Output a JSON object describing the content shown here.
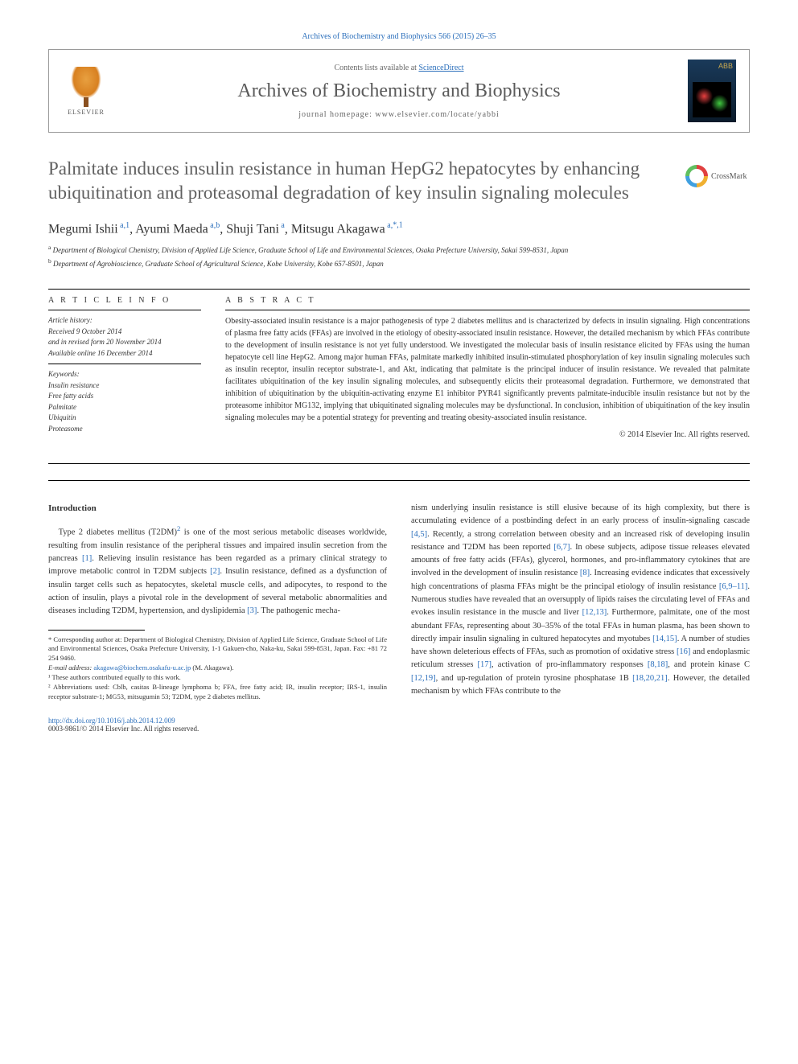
{
  "citation": "Archives of Biochemistry and Biophysics 566 (2015) 26–35",
  "header": {
    "contents_prefix": "Contents lists available at ",
    "contents_link": "ScienceDirect",
    "journal": "Archives of Biochemistry and Biophysics",
    "homepage_prefix": "journal homepage: ",
    "homepage_url": "www.elsevier.com/locate/yabbi",
    "elsevier": "ELSEVIER",
    "cover_label": "ABB"
  },
  "title": "Palmitate induces insulin resistance in human HepG2 hepatocytes by enhancing ubiquitination and proteasomal degradation of key insulin signaling molecules",
  "crossmark": "CrossMark",
  "authors_html": "Megumi Ishii <sup>a,1</sup>, Ayumi Maeda <sup>a,b</sup>, Shuji Tani <sup>a</sup>, Mitsugu Akagawa <sup>a,</sup>",
  "author_corr_sup": "*,1",
  "affiliations": {
    "a": "Department of Biological Chemistry, Division of Applied Life Science, Graduate School of Life and Environmental Sciences, Osaka Prefecture University, Sakai 599-8531, Japan",
    "b": "Department of Agrobioscience, Graduate School of Agricultural Science, Kobe University, Kobe 657-8501, Japan"
  },
  "info": {
    "heading": "A R T I C L E   I N F O",
    "history_label": "Article history:",
    "received": "Received 9 October 2014",
    "revised": "and in revised form 20 November 2014",
    "online": "Available online 16 December 2014",
    "keywords_label": "Keywords:",
    "keywords": [
      "Insulin resistance",
      "Free fatty acids",
      "Palmitate",
      "Ubiquitin",
      "Proteasome"
    ]
  },
  "abstract": {
    "heading": "A B S T R A C T",
    "text": "Obesity-associated insulin resistance is a major pathogenesis of type 2 diabetes mellitus and is characterized by defects in insulin signaling. High concentrations of plasma free fatty acids (FFAs) are involved in the etiology of obesity-associated insulin resistance. However, the detailed mechanism by which FFAs contribute to the development of insulin resistance is not yet fully understood. We investigated the molecular basis of insulin resistance elicited by FFAs using the human hepatocyte cell line HepG2. Among major human FFAs, palmitate markedly inhibited insulin-stimulated phosphorylation of key insulin signaling molecules such as insulin receptor, insulin receptor substrate-1, and Akt, indicating that palmitate is the principal inducer of insulin resistance. We revealed that palmitate facilitates ubiquitination of the key insulin signaling molecules, and subsequently elicits their proteasomal degradation. Furthermore, we demonstrated that inhibition of ubiquitination by the ubiquitin-activating enzyme E1 inhibitor PYR41 significantly prevents palmitate-inducible insulin resistance but not by the proteasome inhibitor MG132, implying that ubiquitinated signaling molecules may be dysfunctional. In conclusion, inhibition of ubiquitination of the key insulin signaling molecules may be a potential strategy for preventing and treating obesity-associated insulin resistance.",
    "copyright": "© 2014 Elsevier Inc. All rights reserved."
  },
  "intro": {
    "heading": "Introduction",
    "para_left": "Type 2 diabetes mellitus (T2DM)² is one of the most serious metabolic diseases worldwide, resulting from insulin resistance of the peripheral tissues and impaired insulin secretion from the pancreas [1]. Relieving insulin resistance has been regarded as a primary clinical strategy to improve metabolic control in T2DM subjects [2]. Insulin resistance, defined as a dysfunction of insulin target cells such as hepatocytes, skeletal muscle cells, and adipocytes, to respond to the action of insulin, plays a pivotal role in the development of several metabolic abnormalities and diseases including T2DM, hypertension, and dyslipidemia [3]. The pathogenic mecha-",
    "para_right": "nism underlying insulin resistance is still elusive because of its high complexity, but there is accumulating evidence of a postbinding defect in an early process of insulin-signaling cascade [4,5]. Recently, a strong correlation between obesity and an increased risk of developing insulin resistance and T2DM has been reported [6,7]. In obese subjects, adipose tissue releases elevated amounts of free fatty acids (FFAs), glycerol, hormones, and pro-inflammatory cytokines that are involved in the development of insulin resistance [8]. Increasing evidence indicates that excessively high concentrations of plasma FFAs might be the principal etiology of insulin resistance [6,9–11]. Numerous studies have revealed that an oversupply of lipids raises the circulating level of FFAs and evokes insulin resistance in the muscle and liver [12,13]. Furthermore, palmitate, one of the most abundant FFAs, representing about 30–35% of the total FFAs in human plasma, has been shown to directly impair insulin signaling in cultured hepatocytes and myotubes [14,15]. A number of studies have shown deleterious effects of FFAs, such as promotion of oxidative stress [16] and endoplasmic reticulum stresses [17], activation of pro-inflammatory responses [8,18], and protein kinase C [12,19], and up-regulation of protein tyrosine phosphatase 1B [18,20,21]. However, the detailed mechanism by which FFAs contribute to the"
  },
  "footnotes": {
    "corr": "* Corresponding author at: Department of Biological Chemistry, Division of Applied Life Science, Graduate School of Life and Environmental Sciences, Osaka Prefecture University, 1-1 Gakuen-cho, Naka-ku, Sakai 599-8531, Japan. Fax: +81 72 254 9460.",
    "email_label": "E-mail address: ",
    "email": "akagawa@biochem.osakafu-u.ac.jp",
    "email_suffix": " (M. Akagawa).",
    "note1": "¹ These authors contributed equally to this work.",
    "note2": "² Abbreviations used: Cblb, casitas B-lineage lymphoma b; FFA, free fatty acid; IR, insulin receptor; IRS-1, insulin receptor substrate-1; MG53, mitsugumin 53; T2DM, type 2 diabetes mellitus."
  },
  "footer": {
    "doi": "http://dx.doi.org/10.1016/j.abb.2014.12.009",
    "issn_line": "0003-9861/© 2014 Elsevier Inc. All rights reserved."
  },
  "colors": {
    "link": "#2a6ebb",
    "text": "#333333",
    "title": "#606060"
  }
}
